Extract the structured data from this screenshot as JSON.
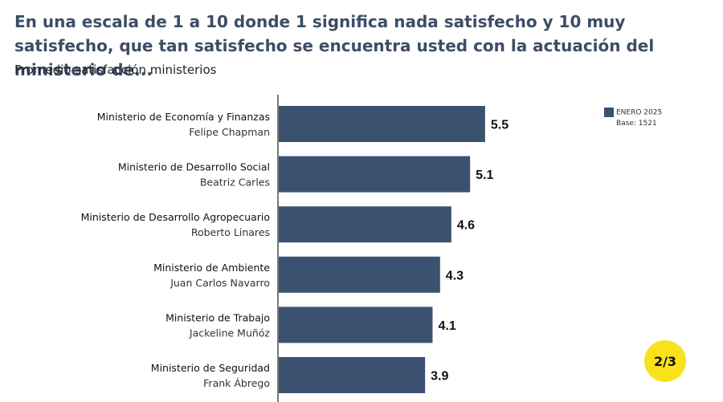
{
  "title": "En una escala de 1 a 10 donde 1 significa nada satisfecho y 10 muy satisfecho, que tan satisfecho se encuentra usted con la actuación del ministerio de...",
  "subtitle": "Promedio satisfacción ministerios",
  "legend": {
    "series_label": "ENERO 2025",
    "base_label": "Base: 1521",
    "color": "#3b5170"
  },
  "page_indicator": "2/3",
  "colors": {
    "bar": "#3b5170",
    "title": "#3d4d66",
    "badge": "#f7e21c"
  },
  "chart_data": {
    "type": "bar",
    "orientation": "horizontal",
    "categories": [
      {
        "ministry": "Ministerio de Economía y Finanzas",
        "minister": "Felipe Chapman"
      },
      {
        "ministry": "Ministerio de Desarrollo Social",
        "minister": "Beatriz Carles"
      },
      {
        "ministry": "Ministerio de Desarrollo Agropecuario",
        "minister": "Roberto Linares"
      },
      {
        "ministry": "Ministerio de Ambiente",
        "minister": "Juan Carlos Navarro"
      },
      {
        "ministry": "Ministerio de Trabajo",
        "minister": "Jackeline Muñóz"
      },
      {
        "ministry": "Ministerio de Seguridad",
        "minister": "Frank Ábrego"
      }
    ],
    "series": [
      {
        "name": "ENERO 2025",
        "values": [
          5.5,
          5.1,
          4.6,
          4.3,
          4.1,
          3.9
        ],
        "labels": [
          "5.5",
          "5.1",
          "4.6",
          "4.3",
          "4.1",
          "3.9"
        ]
      }
    ],
    "xlim": [
      0,
      10
    ],
    "grid": false,
    "legend_position": "top-right"
  }
}
